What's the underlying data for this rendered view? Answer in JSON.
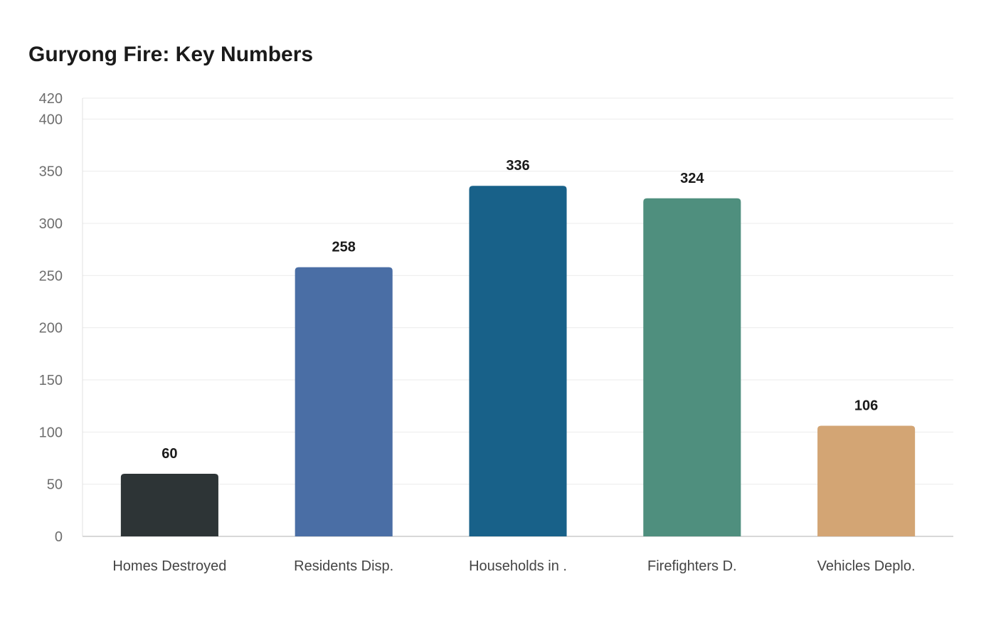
{
  "chart_data": {
    "type": "bar",
    "title": "Guryong Fire: Key Numbers",
    "xlabel": "",
    "ylabel": "",
    "categories": [
      "Homes Destroyed",
      "Residents Disp.",
      "Households in .",
      "Firefighters D.",
      "Vehicles Deplo."
    ],
    "values": [
      60,
      258,
      336,
      324,
      106
    ],
    "colors": [
      "#2d3436",
      "#4a6ea5",
      "#186189",
      "#4f8f7e",
      "#d3a574"
    ],
    "ylim": [
      0,
      420
    ],
    "yticks": [
      0,
      50,
      100,
      150,
      200,
      250,
      300,
      350,
      400,
      420
    ],
    "grid": true,
    "legend": "none"
  }
}
